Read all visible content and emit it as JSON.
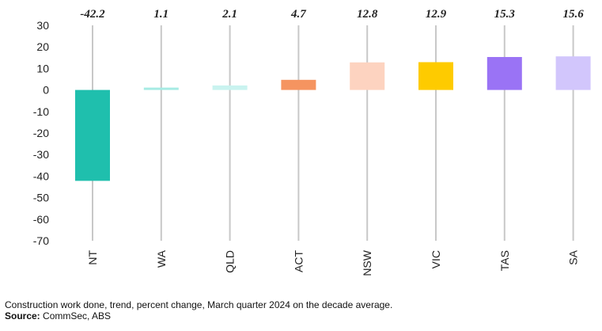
{
  "chart_data": {
    "type": "bar",
    "categories": [
      "NT",
      "WA",
      "QLD",
      "ACT",
      "NSW",
      "VIC",
      "TAS",
      "SA"
    ],
    "values": [
      -42.2,
      1.1,
      2.1,
      4.7,
      12.8,
      12.9,
      15.3,
      15.6
    ],
    "data_labels": [
      "-42.2",
      "1.1",
      "2.1",
      "4.7",
      "12.8",
      "12.9",
      "15.3",
      "15.6"
    ],
    "bar_colors": [
      "#1fbfad",
      "#a6ebe4",
      "#c9f3ef",
      "#f59460",
      "#fdd3c0",
      "#fecb00",
      "#9a73f5",
      "#d2c6fc"
    ],
    "ylim": [
      -70,
      30
    ],
    "yticks": [
      30,
      20,
      10,
      0,
      -10,
      -20,
      -30,
      -40,
      -50,
      -60,
      -70
    ],
    "ytick_labels": [
      "30",
      "20",
      "10",
      "0",
      "-10",
      "-20",
      "-30",
      "-40",
      "-50",
      "-60",
      "-70"
    ],
    "grid": "vertical lines at each category",
    "grid_color": "#c8c8c8",
    "legend": "none"
  },
  "caption": "Construction work done, trend, percent change, March quarter 2024 on the decade average.",
  "source_label": "Source:",
  "source_text": "CommSec, ABS"
}
